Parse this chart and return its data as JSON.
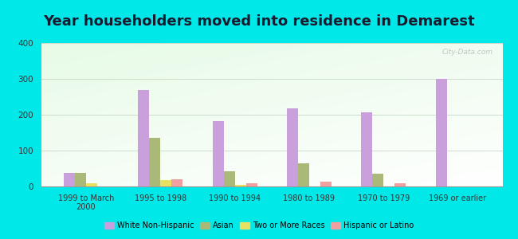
{
  "title": "Year householders moved into residence in Demarest",
  "categories": [
    "1999 to March\n2000",
    "1995 to 1998",
    "1990 to 1994",
    "1980 to 1989",
    "1970 to 1979",
    "1969 or earlier"
  ],
  "series": {
    "White Non-Hispanic": [
      38,
      270,
      183,
      218,
      207,
      300
    ],
    "Asian": [
      38,
      135,
      42,
      65,
      35,
      0
    ],
    "Two or More Races": [
      8,
      18,
      5,
      0,
      0,
      0
    ],
    "Hispanic or Latino": [
      0,
      20,
      10,
      14,
      8,
      0
    ]
  },
  "colors": {
    "White Non-Hispanic": "#c9a0dc",
    "Asian": "#aab878",
    "Two or More Races": "#e8e060",
    "Hispanic or Latino": "#f0a0a0"
  },
  "ylim": [
    0,
    400
  ],
  "yticks": [
    0,
    100,
    200,
    300,
    400
  ],
  "background_color": "#00e8e8",
  "title_fontsize": 13,
  "bar_width": 0.15,
  "watermark": "City-Data.com"
}
